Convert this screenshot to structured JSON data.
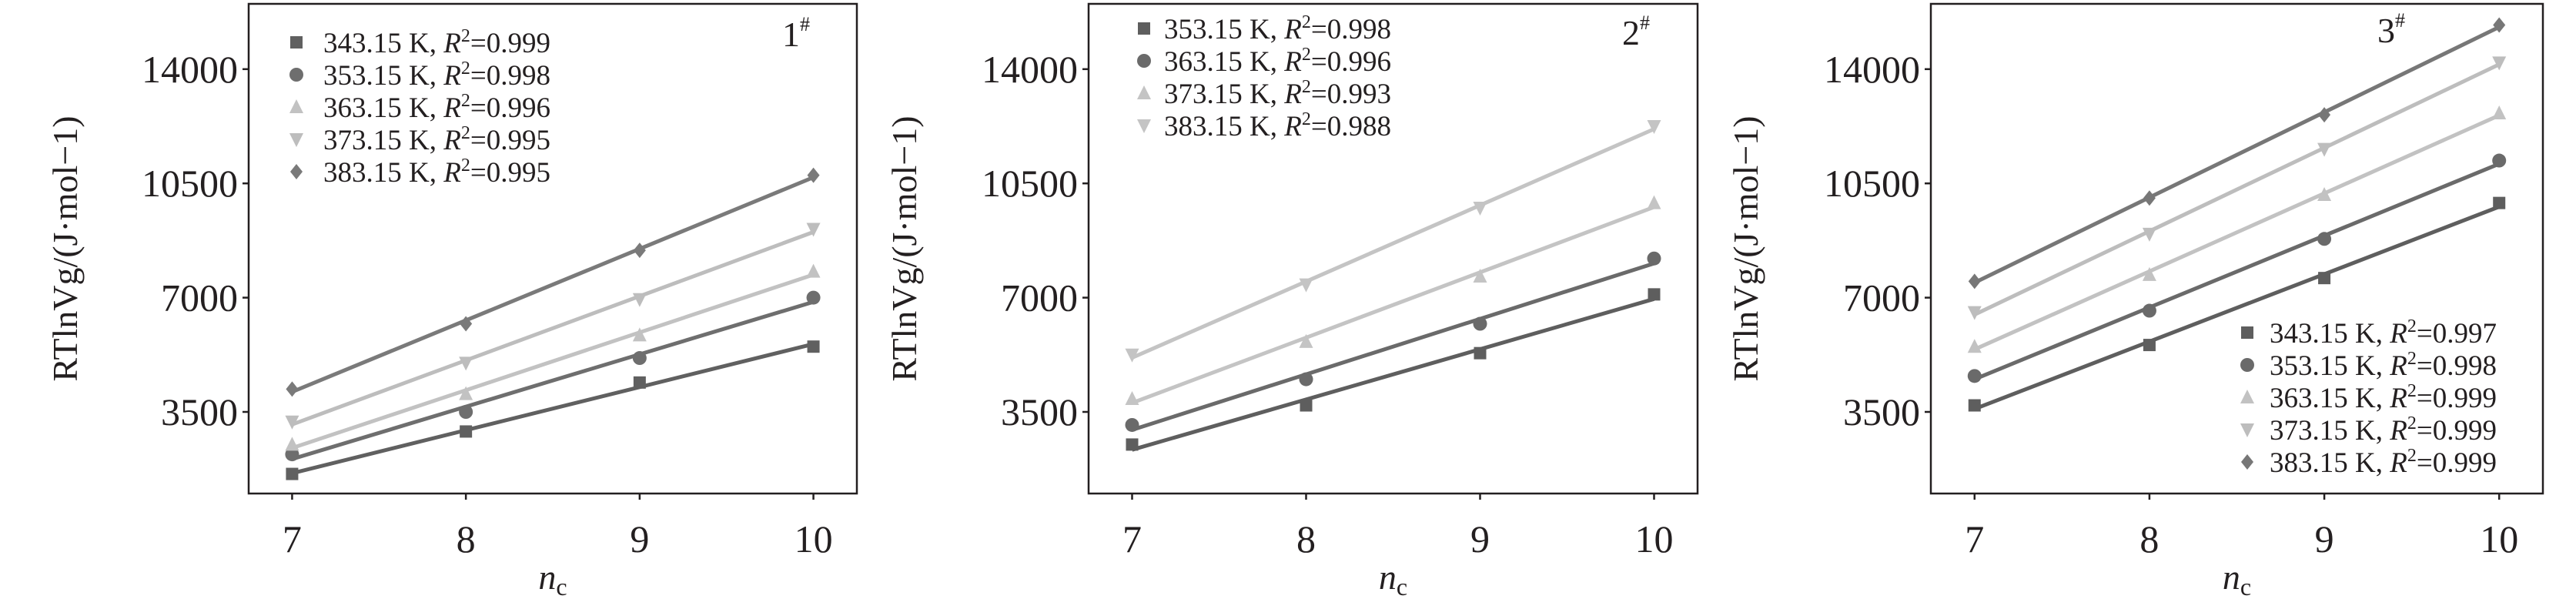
{
  "chart_data": [
    {
      "type": "line",
      "panel_label": "1#",
      "xlabel": "nc",
      "ylabel": "RTlnVg/(J·mol−1)",
      "x": [
        7,
        8,
        9,
        10
      ],
      "xticks": [
        7,
        8,
        9,
        10
      ],
      "yticks": [
        3500,
        7000,
        10500,
        14000
      ],
      "xlim": [
        6.75,
        10.25
      ],
      "ylim": [
        1000,
        16000
      ],
      "grid": false,
      "legend_position": "top-left",
      "series": [
        {
          "name": "343.15 K",
          "r2": "0.999",
          "marker": "square",
          "color": "#606060",
          "values": [
            1600,
            2900,
            4400,
            5500
          ]
        },
        {
          "name": "353.15 K",
          "r2": "0.998",
          "marker": "circle",
          "color": "#6e6e6e",
          "values": [
            2200,
            3500,
            5150,
            7000
          ]
        },
        {
          "name": "363.15 K",
          "r2": "0.996",
          "marker": "triangle-up",
          "color": "#c2c2c2",
          "values": [
            2500,
            4050,
            5850,
            7800
          ]
        },
        {
          "name": "373.15 K",
          "r2": "0.995",
          "marker": "triangle-down",
          "color": "#bdbdbd",
          "values": [
            3200,
            5000,
            6950,
            9100
          ]
        },
        {
          "name": "383.15 K",
          "r2": "0.995",
          "marker": "diamond",
          "color": "#7a7a7a",
          "values": [
            4200,
            6200,
            8450,
            10750
          ]
        }
      ]
    },
    {
      "type": "line",
      "panel_label": "2#",
      "xlabel": "nc",
      "ylabel": "RTlnVg/(J·mol−1)",
      "x": [
        7,
        8,
        9,
        10
      ],
      "xticks": [
        7,
        8,
        9,
        10
      ],
      "yticks": [
        3500,
        7000,
        10500,
        14000
      ],
      "xlim": [
        6.75,
        10.25
      ],
      "ylim": [
        1000,
        16000
      ],
      "grid": false,
      "legend_position": "top-left",
      "series": [
        {
          "name": "353.15 K",
          "r2": "0.998",
          "marker": "square",
          "color": "#5e5e5e",
          "values": [
            2500,
            3700,
            5300,
            7100
          ]
        },
        {
          "name": "363.15 K",
          "r2": "0.996",
          "marker": "circle",
          "color": "#6a6a6a",
          "values": [
            3100,
            4500,
            6200,
            8200
          ]
        },
        {
          "name": "373.15 K",
          "r2": "0.993",
          "marker": "triangle-up",
          "color": "#c4c4c4",
          "values": [
            3900,
            5650,
            7650,
            9900
          ]
        },
        {
          "name": "383.15 K",
          "r2": "0.988",
          "marker": "triangle-down",
          "color": "#c4c4c4",
          "values": [
            5250,
            7400,
            9750,
            12250
          ]
        }
      ]
    },
    {
      "type": "line",
      "panel_label": "3#",
      "xlabel": "nc",
      "ylabel": "RTlnVg/(J·mol−1)",
      "x": [
        7,
        8,
        9,
        10
      ],
      "xticks": [
        7,
        8,
        9,
        10
      ],
      "yticks": [
        3500,
        7000,
        10500,
        14000
      ],
      "xlim": [
        6.75,
        10.25
      ],
      "ylim": [
        1000,
        16000
      ],
      "grid": false,
      "legend_position": "bottom-right",
      "series": [
        {
          "name": "343.15 K",
          "r2": "0.997",
          "marker": "square",
          "color": "#5e5e5e",
          "values": [
            3700,
            5550,
            7600,
            9900
          ]
        },
        {
          "name": "353.15 K",
          "r2": "0.998",
          "marker": "circle",
          "color": "#6a6a6a",
          "values": [
            4600,
            6600,
            8800,
            11200
          ]
        },
        {
          "name": "363.15 K",
          "r2": "0.999",
          "marker": "triangle-up",
          "color": "#c2c2c2",
          "values": [
            5500,
            7700,
            10150,
            12650
          ]
        },
        {
          "name": "373.15 K",
          "r2": "0.999",
          "marker": "triangle-down",
          "color": "#bdbdbd",
          "values": [
            6550,
            8950,
            11550,
            14200
          ]
        },
        {
          "name": "383.15 K",
          "r2": "0.999",
          "marker": "diamond",
          "color": "#777777",
          "values": [
            7500,
            10050,
            12600,
            15350
          ]
        }
      ]
    }
  ]
}
